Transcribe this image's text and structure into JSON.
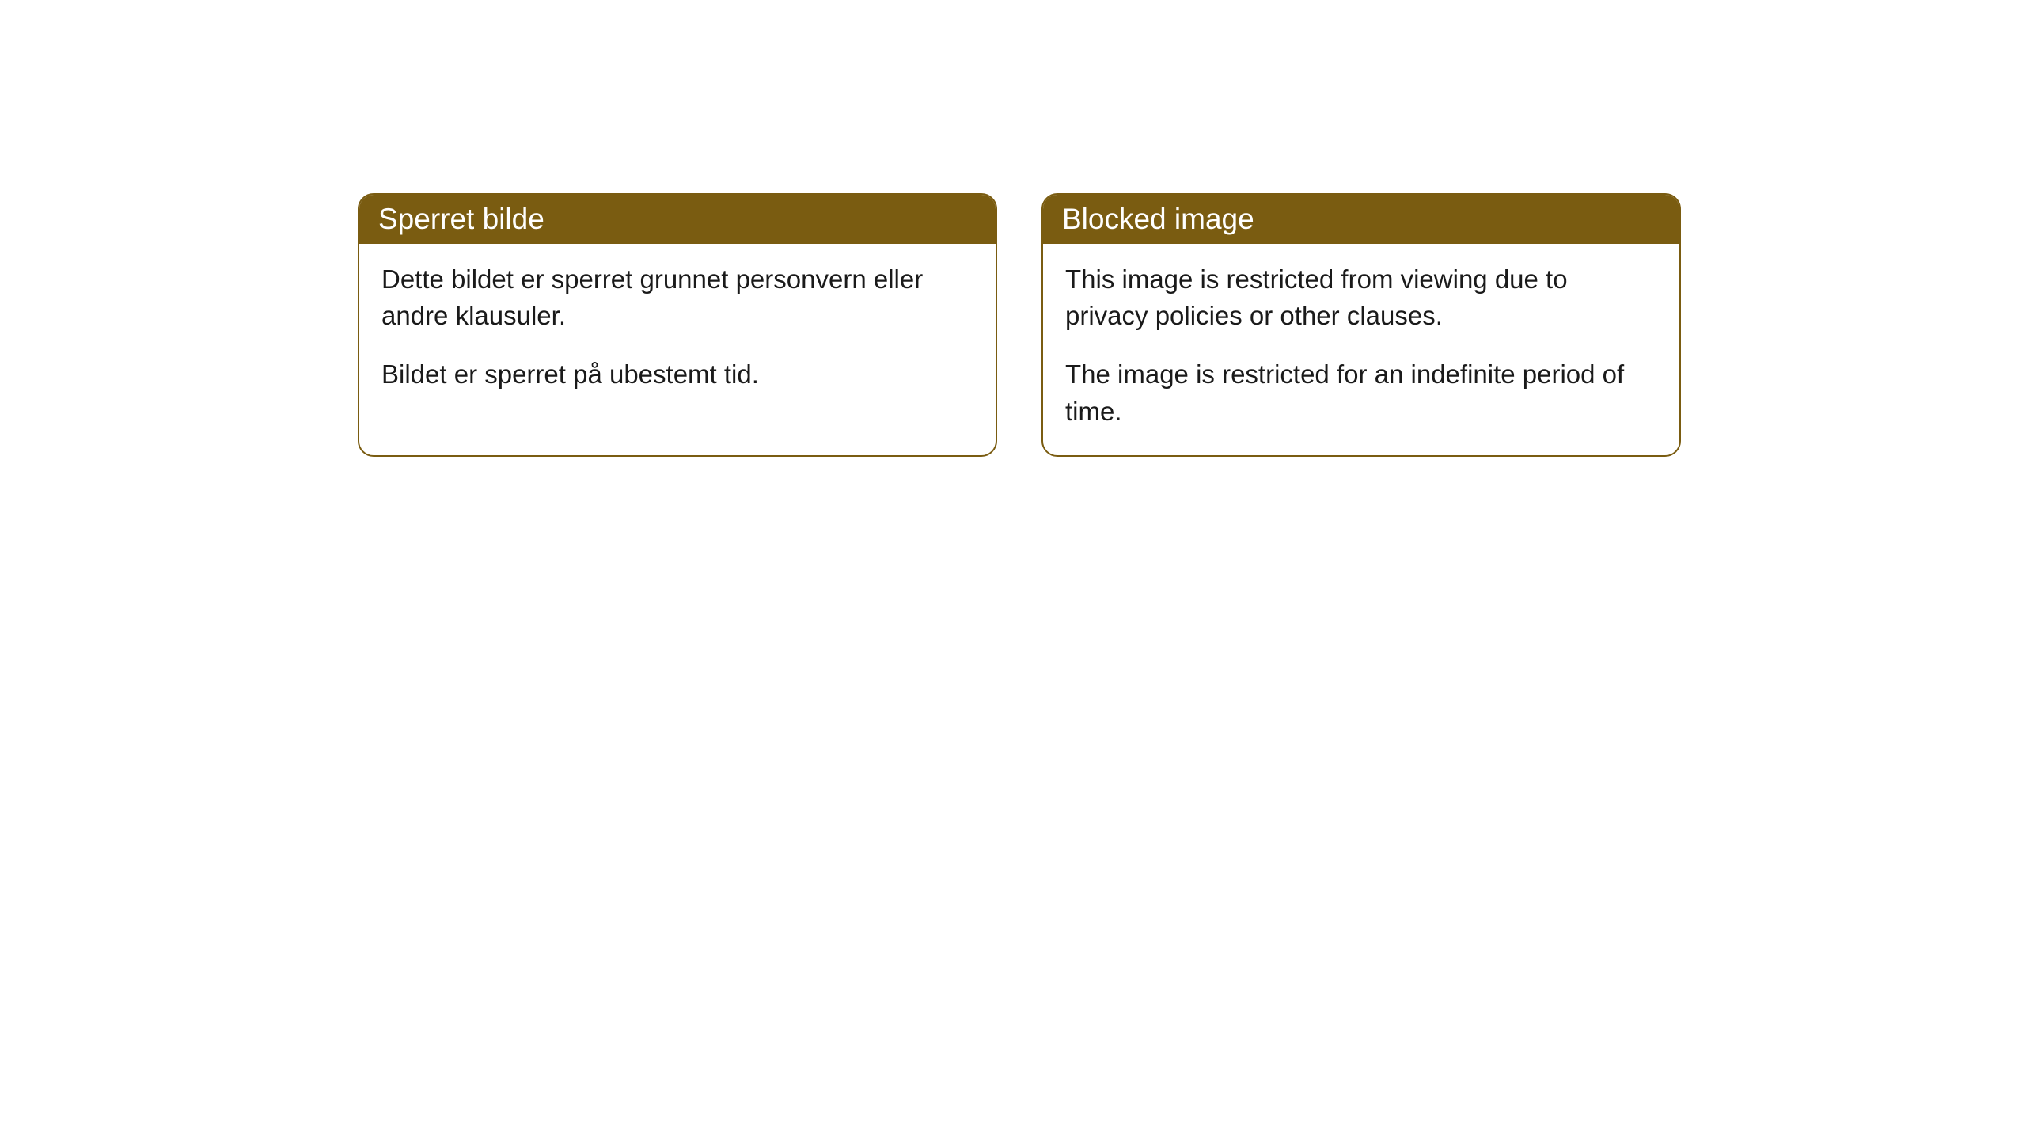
{
  "cards": [
    {
      "title": "Sperret bilde",
      "paragraph1": "Dette bildet er sperret grunnet personvern eller andre klausuler.",
      "paragraph2": "Bildet er sperret på ubestemt tid."
    },
    {
      "title": "Blocked image",
      "paragraph1": "This image is restricted from viewing due to privacy policies or other clauses.",
      "paragraph2": "The image is restricted for an indefinite period of time."
    }
  ],
  "styling": {
    "header_background_color": "#7a5c11",
    "header_text_color": "#ffffff",
    "card_border_color": "#7a5c11",
    "card_background_color": "#ffffff",
    "body_text_color": "#1a1a1a",
    "border_radius": 20,
    "header_fontsize": 37,
    "body_fontsize": 33
  }
}
